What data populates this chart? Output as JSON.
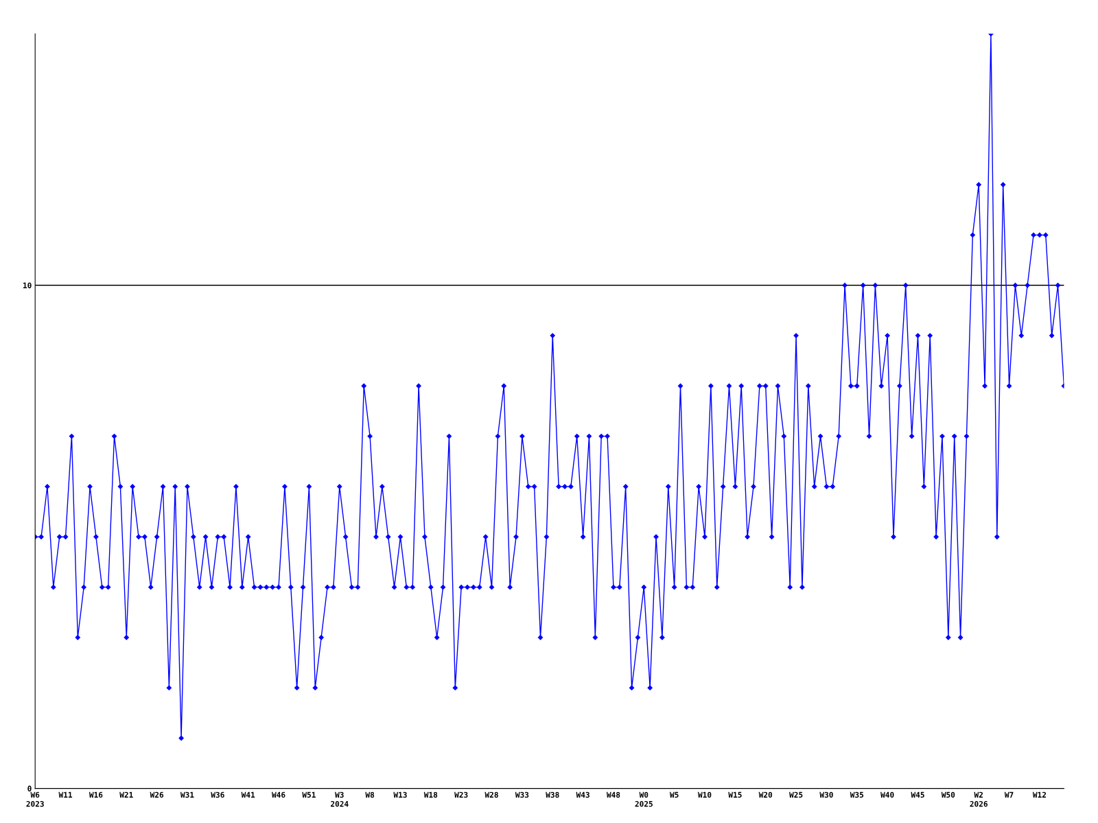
{
  "chart_data": {
    "type": "line",
    "categories": [
      "W6\n2023",
      null,
      null,
      null,
      null,
      "W11",
      null,
      null,
      null,
      null,
      "W16",
      null,
      null,
      null,
      null,
      "W21",
      null,
      null,
      null,
      null,
      "W26",
      null,
      null,
      null,
      null,
      "W31",
      null,
      null,
      null,
      null,
      "W36",
      null,
      null,
      null,
      null,
      "W41",
      null,
      null,
      null,
      null,
      "W46",
      null,
      null,
      null,
      null,
      "W51",
      null,
      null,
      null,
      null,
      "W3\n2024",
      null,
      null,
      null,
      null,
      "W8",
      null,
      null,
      null,
      null,
      "W13",
      null,
      null,
      null,
      null,
      "W18",
      null,
      null,
      null,
      null,
      "W23",
      null,
      null,
      null,
      null,
      "W28",
      null,
      null,
      null,
      null,
      "W33",
      null,
      null,
      null,
      null,
      "W38",
      null,
      null,
      null,
      null,
      "W43",
      null,
      null,
      null,
      null,
      "W48",
      null,
      null,
      null,
      null,
      "W0\n2025",
      null,
      null,
      null,
      null,
      "W5",
      null,
      null,
      null,
      null,
      "W10",
      null,
      null,
      null,
      null,
      "W15",
      null,
      null,
      null,
      null,
      "W20",
      null,
      null,
      null,
      null,
      "W25",
      null,
      null,
      null,
      null,
      "W30",
      null,
      null,
      null,
      null,
      "W35",
      null,
      null,
      null,
      null,
      "W40",
      null,
      null,
      null,
      null,
      "W45",
      null,
      null,
      null,
      null,
      "W50",
      null,
      null,
      null,
      null,
      "W2\n2026",
      null,
      null,
      null,
      null,
      "W7",
      null,
      null,
      null,
      null,
      "W12",
      null,
      null,
      null,
      null
    ],
    "series": [
      {
        "color": "#0000ff",
        "values": [
          5,
          5,
          6,
          4,
          5,
          5,
          7,
          3,
          4,
          6,
          5,
          4,
          4,
          7,
          6,
          3,
          6,
          5,
          5,
          4,
          5,
          6,
          2,
          6,
          1,
          6,
          5,
          4,
          5,
          4,
          5,
          5,
          4,
          6,
          4,
          5,
          4,
          4,
          4,
          4,
          4,
          6,
          4,
          2,
          4,
          6,
          2,
          3,
          4,
          4,
          6,
          5,
          4,
          4,
          8,
          7,
          5,
          6,
          5,
          4,
          5,
          4,
          4,
          8,
          5,
          4,
          3,
          4,
          7,
          2,
          4,
          4,
          4,
          4,
          5,
          4,
          7,
          8,
          4,
          5,
          7,
          6,
          6,
          3,
          5,
          9,
          6,
          6,
          6,
          7,
          5,
          7,
          3,
          7,
          7,
          4,
          4,
          6,
          2,
          3,
          4,
          2,
          5,
          3,
          6,
          4,
          8,
          4,
          4,
          6,
          5,
          8,
          4,
          6,
          8,
          6,
          8,
          5,
          6,
          8,
          8,
          5,
          8,
          7,
          4,
          9,
          4,
          8,
          6,
          7,
          6,
          6,
          7,
          10,
          8,
          8,
          10,
          7,
          10,
          8,
          9,
          5,
          8,
          10,
          7,
          9,
          6,
          9,
          5,
          7,
          3,
          7,
          3,
          7,
          11,
          12,
          8,
          15,
          5,
          12,
          8,
          10,
          9,
          10,
          11,
          11,
          11,
          9,
          10,
          8
        ]
      }
    ],
    "ylim": [
      0,
      15
    ],
    "yticks": [
      0,
      10
    ],
    "grid": "y",
    "marker": "diamond",
    "line_style": "solid",
    "legend": false
  }
}
